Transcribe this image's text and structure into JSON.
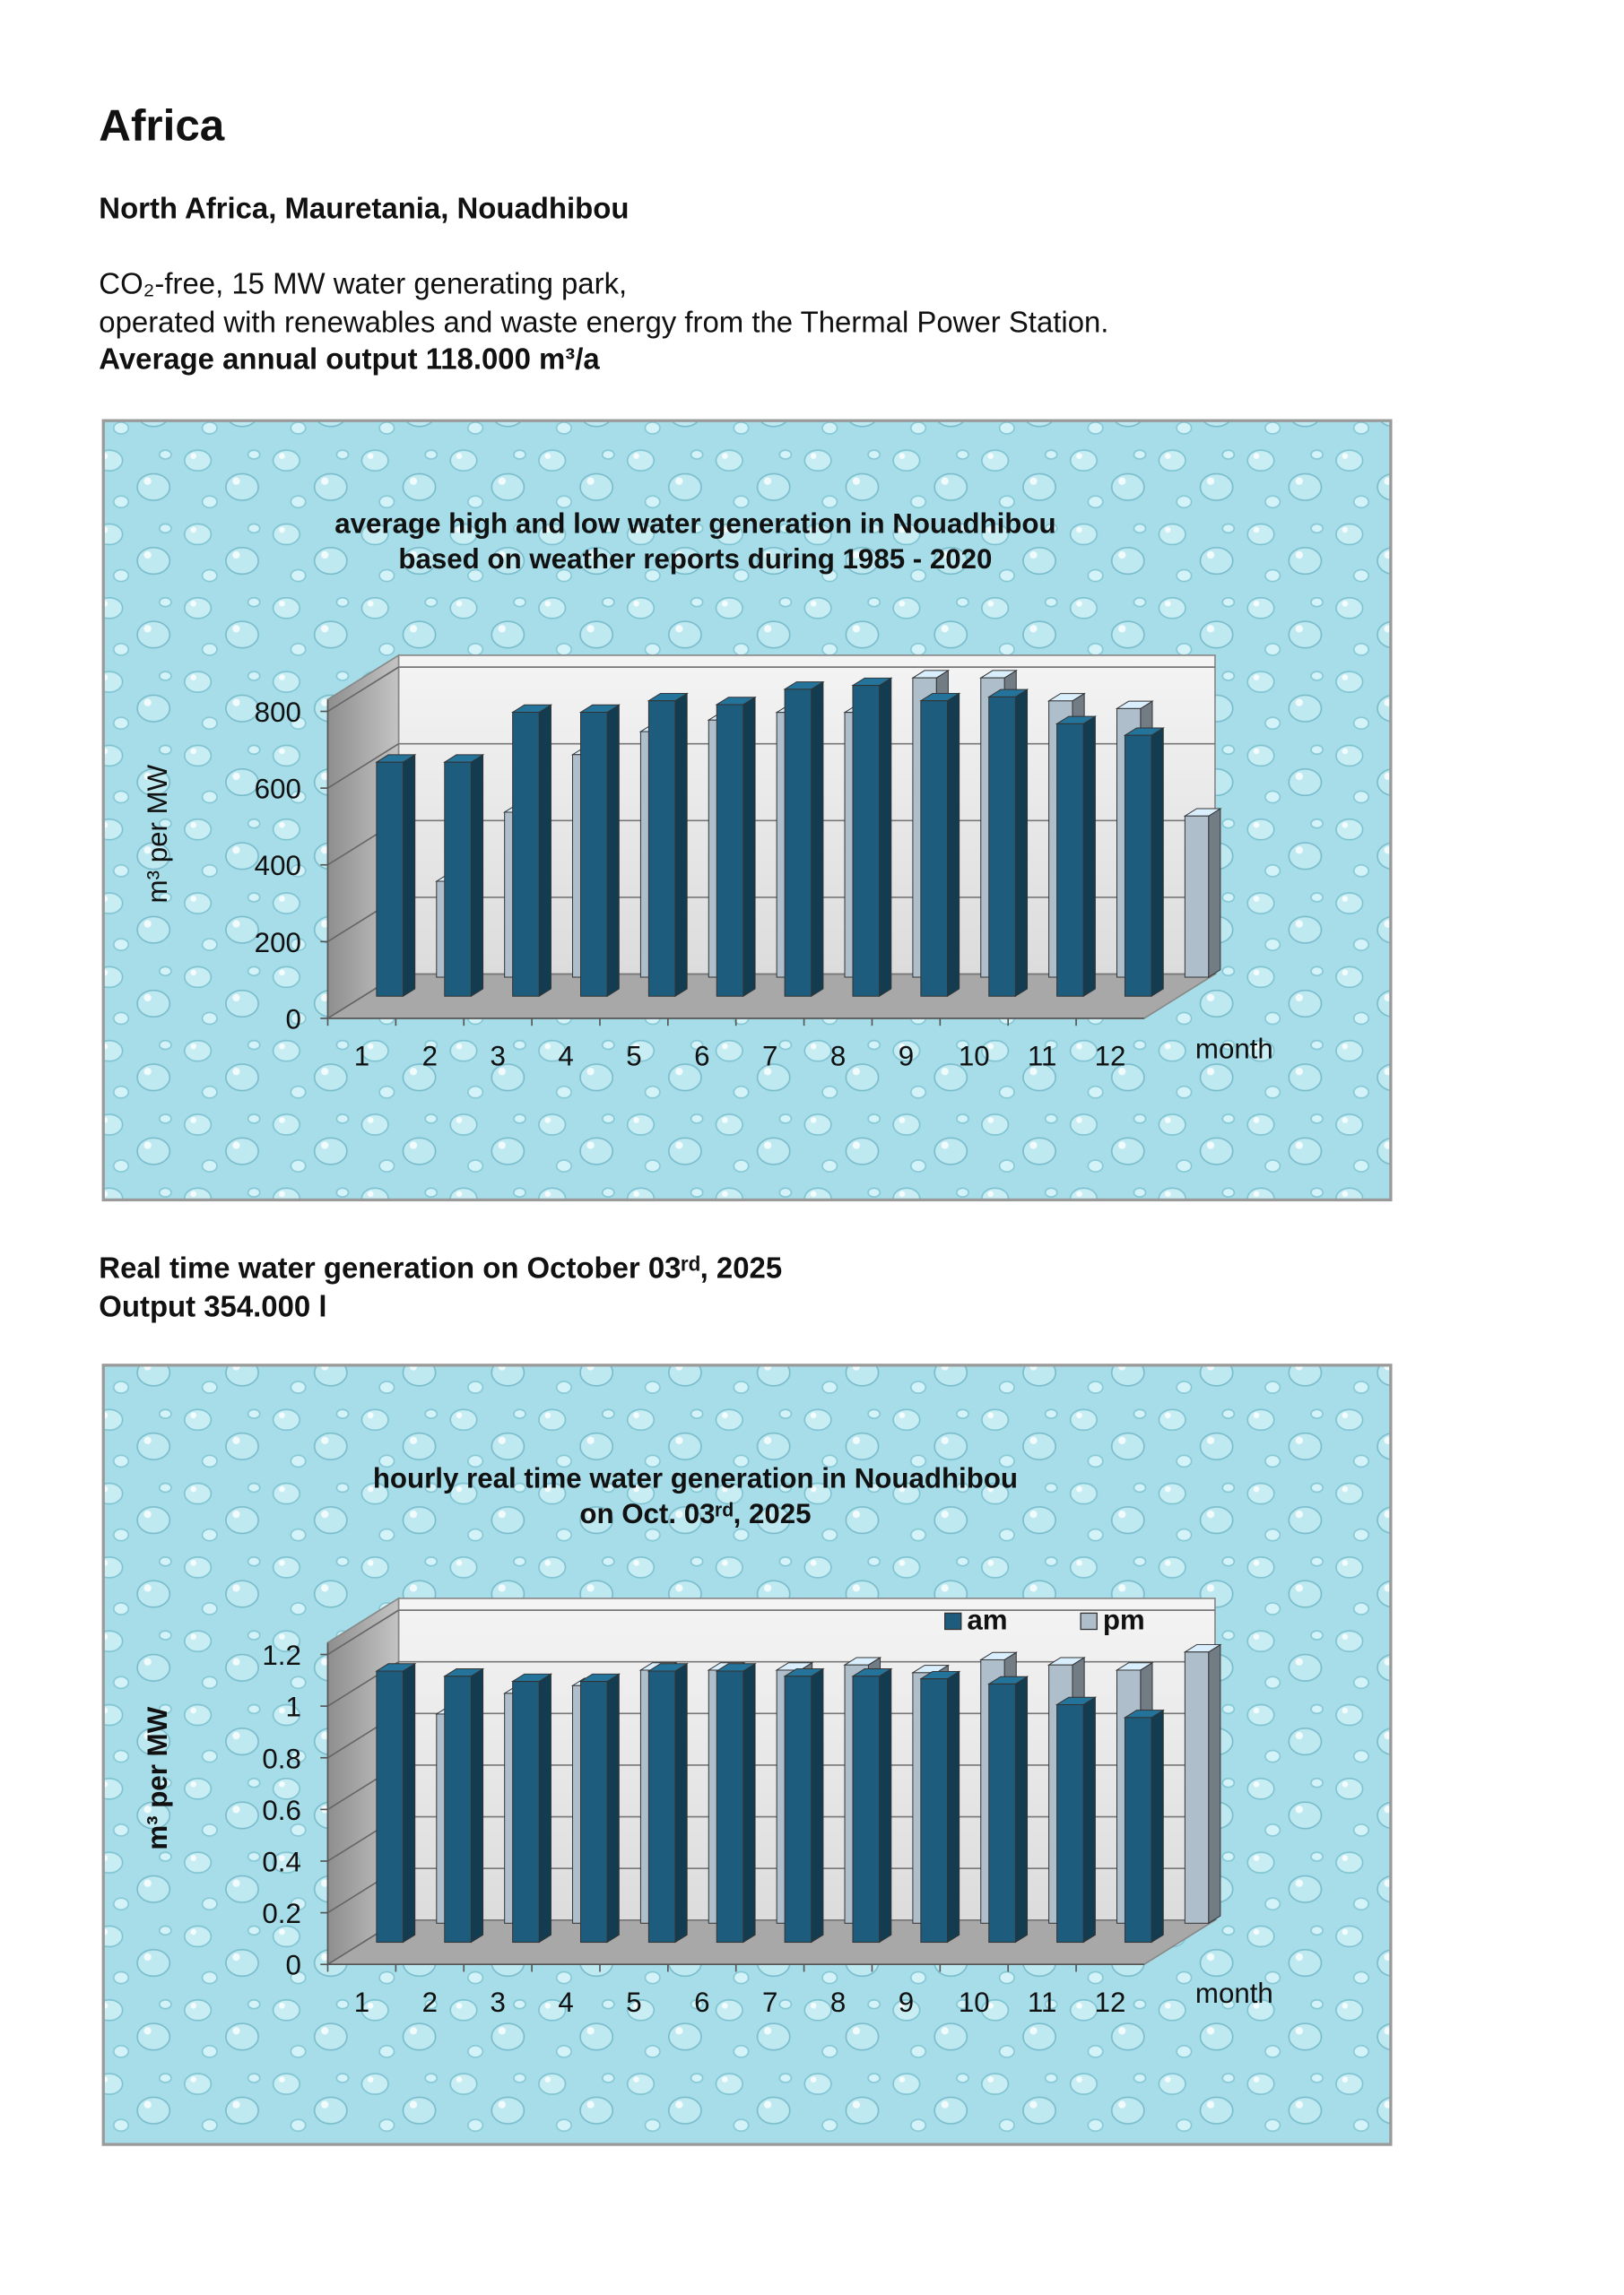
{
  "document": {
    "heading": "Africa",
    "location": "North Africa, Mauretania, Nouadhibou",
    "line1": "CO₂-free, 15 MW water generating park,",
    "line2": "operated with renewables and waste energy from the Thermal Power Station.",
    "output": "Average annual output 118.000 m³/a",
    "realtime": "Real time water generation on October 03ʳᵈ, 2025",
    "realtime_output": "Output 354.000 l"
  },
  "chart_data": [
    {
      "type": "bar3d",
      "title": "average high and low water generation in Nouadhibou",
      "subtitle": "based on weather reports during 1985 - 2020",
      "xlabel": "month",
      "ylabel": "m³ per MW",
      "categories": [
        "1",
        "2",
        "3",
        "4",
        "5",
        "6",
        "7",
        "8",
        "9",
        "10",
        "11",
        "12"
      ],
      "series": [
        {
          "color": "#1d5c7c",
          "values": [
            610,
            610,
            740,
            740,
            770,
            760,
            800,
            810,
            770,
            780,
            710,
            680
          ]
        },
        {
          "color": "#aebfcb",
          "values": [
            250,
            430,
            580,
            640,
            670,
            690,
            690,
            780,
            780,
            720,
            700,
            420
          ]
        }
      ],
      "ylim": [
        0,
        800
      ],
      "yticks": [
        0,
        200,
        400,
        600,
        800
      ],
      "grid": true
    },
    {
      "type": "bar3d",
      "title": "hourly real time water generation in Nouadhibou",
      "subtitle": "on Oct. 03ʳᵈ, 2025",
      "xlabel": "month",
      "ylabel": "m³ per MW",
      "categories": [
        "1",
        "2",
        "3",
        "4",
        "5",
        "6",
        "7",
        "8",
        "9",
        "10",
        "11",
        "12"
      ],
      "series": [
        {
          "name": "am",
          "color": "#1d5c7c",
          "values": [
            1.05,
            1.03,
            1.01,
            1.01,
            1.05,
            1.05,
            1.03,
            1.03,
            1.02,
            1.0,
            0.92,
            0.87
          ]
        },
        {
          "name": "pm",
          "color": "#aebfcb",
          "values": [
            0.81,
            0.89,
            0.92,
            0.98,
            0.98,
            0.98,
            1.0,
            0.97,
            1.02,
            1.0,
            0.98,
            1.05
          ]
        }
      ],
      "ylim": [
        0,
        1.2
      ],
      "yticks": [
        0,
        0.2,
        0.4,
        0.6,
        0.8,
        1,
        1.2
      ],
      "legend": "top-right",
      "grid": true
    }
  ]
}
